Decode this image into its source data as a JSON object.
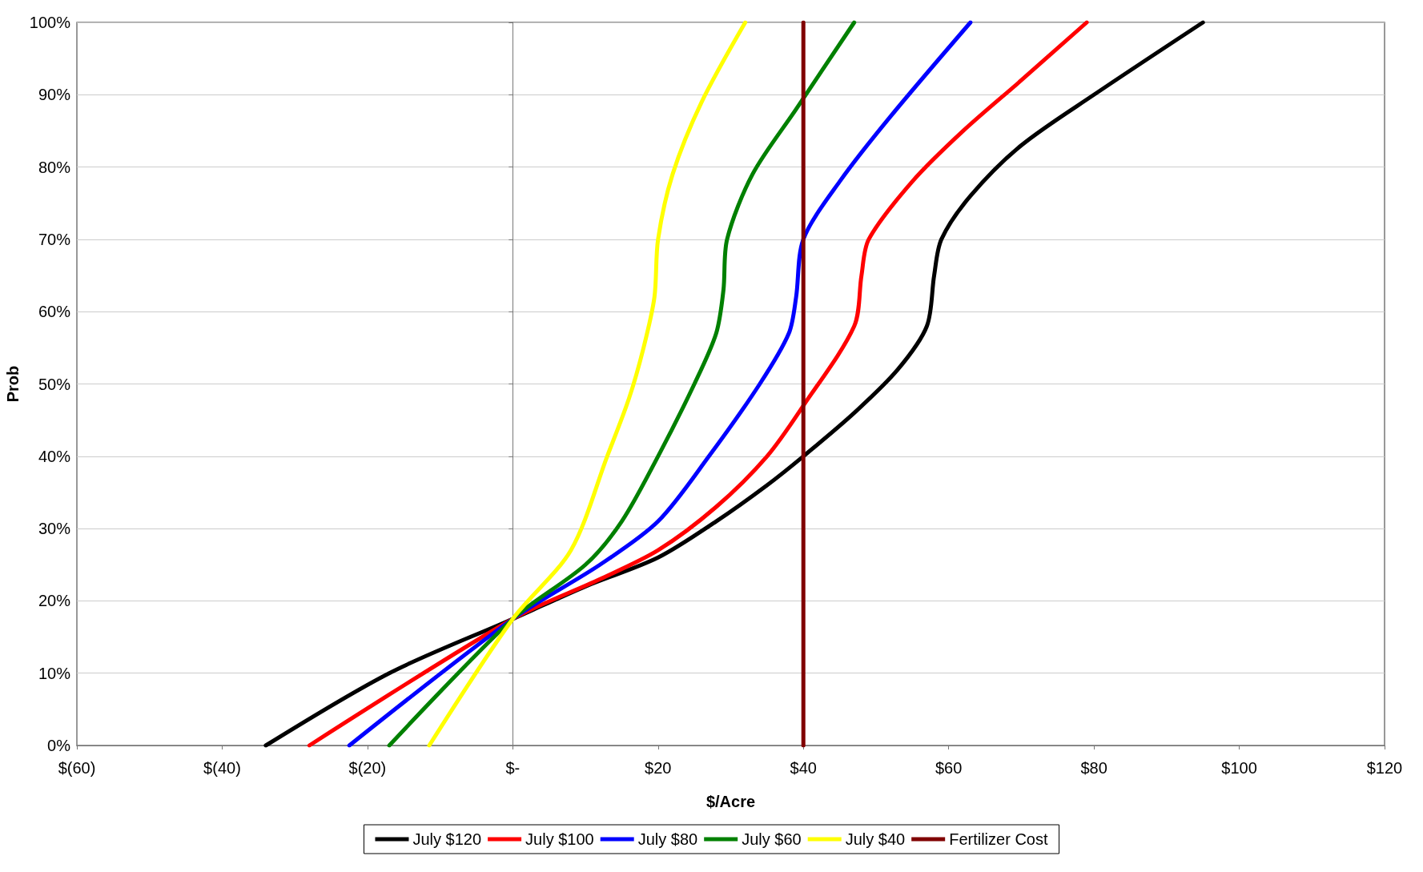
{
  "chart_data": {
    "type": "line",
    "xlabel": "$/Acre",
    "ylabel": "Prob",
    "xlim": [
      -60,
      120
    ],
    "ylim": [
      0,
      100
    ],
    "xticks": [
      {
        "value": -60,
        "label": "$(60)"
      },
      {
        "value": -40,
        "label": "$(40)"
      },
      {
        "value": -20,
        "label": "$(20)"
      },
      {
        "value": 0,
        "label": "$-"
      },
      {
        "value": 20,
        "label": "$20"
      },
      {
        "value": 40,
        "label": "$40"
      },
      {
        "value": 60,
        "label": "$60"
      },
      {
        "value": 80,
        "label": "$80"
      },
      {
        "value": 100,
        "label": "$100"
      },
      {
        "value": 120,
        "label": "$120"
      }
    ],
    "yticks": [
      {
        "value": 0,
        "label": "0%"
      },
      {
        "value": 10,
        "label": "10%"
      },
      {
        "value": 20,
        "label": "20%"
      },
      {
        "value": 30,
        "label": "30%"
      },
      {
        "value": 40,
        "label": "40%"
      },
      {
        "value": 50,
        "label": "50%"
      },
      {
        "value": 60,
        "label": "60%"
      },
      {
        "value": 70,
        "label": "70%"
      },
      {
        "value": 80,
        "label": "80%"
      },
      {
        "value": 90,
        "label": "90%"
      },
      {
        "value": 100,
        "label": "100%"
      }
    ],
    "grid": "y",
    "legend": "bottom",
    "marker": "none",
    "line_style": "solid",
    "series": [
      {
        "name": "July $120",
        "color": "#000000",
        "x": [
          -34,
          -17,
          0,
          10,
          20,
          28,
          35,
          40,
          47,
          53,
          57,
          58,
          59,
          63,
          70,
          80,
          95
        ],
        "values": [
          0,
          10,
          17.5,
          22,
          26,
          31,
          36,
          40,
          46,
          52,
          58,
          65,
          70,
          76,
          83,
          90,
          100
        ]
      },
      {
        "name": "July $100",
        "color": "#ff0000",
        "x": [
          -28,
          0,
          12,
          20,
          28,
          35,
          40,
          47,
          48,
          49,
          55,
          62,
          70,
          79
        ],
        "values": [
          0,
          17.5,
          23,
          27,
          33,
          40,
          47,
          58,
          65,
          70,
          78,
          85,
          92,
          100
        ]
      },
      {
        "name": "July $80",
        "color": "#0000ff",
        "x": [
          -22.5,
          0,
          12,
          20,
          27,
          34,
          38,
          39,
          40,
          45,
          52,
          63
        ],
        "values": [
          0,
          17.5,
          25,
          31,
          40,
          50,
          57,
          62,
          70,
          78,
          87,
          100
        ]
      },
      {
        "name": "July $60",
        "color": "#008000",
        "x": [
          -17,
          0,
          10,
          15,
          20,
          25,
          28,
          29,
          29.5,
          33,
          39,
          47
        ],
        "values": [
          0,
          17.5,
          25,
          31,
          40,
          50,
          57,
          63,
          70,
          79,
          88,
          100
        ]
      },
      {
        "name": "July $40",
        "color": "#ffff00",
        "x": [
          -11.5,
          0,
          8,
          13,
          16,
          18,
          19.5,
          20,
          22,
          26,
          32
        ],
        "values": [
          0,
          17.5,
          27,
          40,
          48,
          55,
          62,
          70,
          79,
          89,
          100
        ]
      },
      {
        "name": "Fertilizer Cost",
        "color": "#800000",
        "x": [
          40,
          40
        ],
        "values": [
          0,
          100
        ]
      }
    ]
  }
}
